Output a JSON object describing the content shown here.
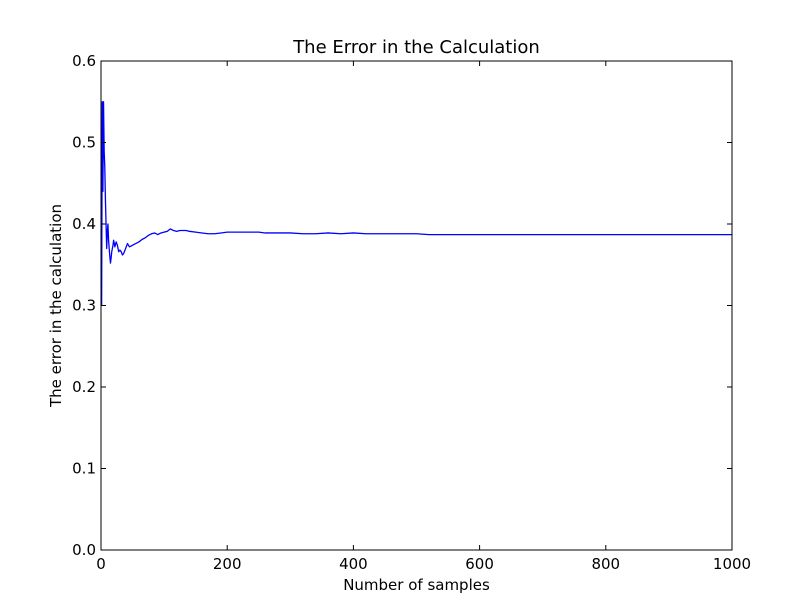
{
  "chart_data": {
    "type": "line",
    "title": "The Error in the Calculation",
    "xlabel": "Number of samples",
    "ylabel": "The error in the calculation",
    "xlim": [
      0,
      1000
    ],
    "ylim": [
      0.0,
      0.6
    ],
    "xticks": [
      "0",
      "200",
      "400",
      "600",
      "800",
      "1000"
    ],
    "yticks": [
      "0.0",
      "0.1",
      "0.2",
      "0.3",
      "0.4",
      "0.5",
      "0.6"
    ],
    "grid": false,
    "line_color": "#0000ff",
    "series": [
      {
        "x": [
          1,
          2,
          3,
          4,
          5,
          6,
          7,
          8,
          9,
          10,
          11,
          12,
          13,
          14,
          15,
          16,
          17,
          18,
          19,
          20,
          22,
          24,
          26,
          28,
          30,
          32,
          34,
          36,
          38,
          40,
          42,
          45,
          48,
          50,
          55,
          60,
          65,
          70,
          75,
          80,
          85,
          90,
          95,
          100,
          105,
          110,
          115,
          120,
          125,
          130,
          135,
          140,
          150,
          160,
          170,
          180,
          190,
          200,
          210,
          220,
          230,
          240,
          250,
          260,
          270,
          280,
          290,
          300,
          320,
          340,
          360,
          380,
          400,
          420,
          440,
          460,
          480,
          500,
          520,
          540,
          560,
          580,
          600,
          620,
          640,
          660,
          680,
          700,
          720,
          740,
          760,
          780,
          800,
          820,
          840,
          860,
          880,
          900,
          920,
          940,
          960,
          980,
          1000
        ],
        "y": [
          0.3,
          0.55,
          0.44,
          0.55,
          0.49,
          0.47,
          0.43,
          0.4,
          0.37,
          0.39,
          0.4,
          0.38,
          0.37,
          0.36,
          0.352,
          0.358,
          0.366,
          0.37,
          0.374,
          0.38,
          0.372,
          0.378,
          0.374,
          0.366,
          0.368,
          0.366,
          0.362,
          0.364,
          0.368,
          0.372,
          0.376,
          0.372,
          0.373,
          0.374,
          0.376,
          0.378,
          0.381,
          0.383,
          0.386,
          0.388,
          0.389,
          0.387,
          0.389,
          0.39,
          0.391,
          0.394,
          0.392,
          0.391,
          0.392,
          0.392,
          0.392,
          0.391,
          0.39,
          0.389,
          0.388,
          0.388,
          0.389,
          0.39,
          0.39,
          0.39,
          0.39,
          0.39,
          0.39,
          0.389,
          0.389,
          0.389,
          0.389,
          0.389,
          0.388,
          0.388,
          0.389,
          0.388,
          0.389,
          0.388,
          0.388,
          0.388,
          0.388,
          0.388,
          0.387,
          0.387,
          0.387,
          0.387,
          0.387,
          0.387,
          0.387,
          0.387,
          0.387,
          0.387,
          0.387,
          0.387,
          0.387,
          0.387,
          0.387,
          0.387,
          0.387,
          0.387,
          0.387,
          0.387,
          0.387,
          0.387,
          0.387,
          0.387,
          0.387
        ]
      }
    ]
  }
}
